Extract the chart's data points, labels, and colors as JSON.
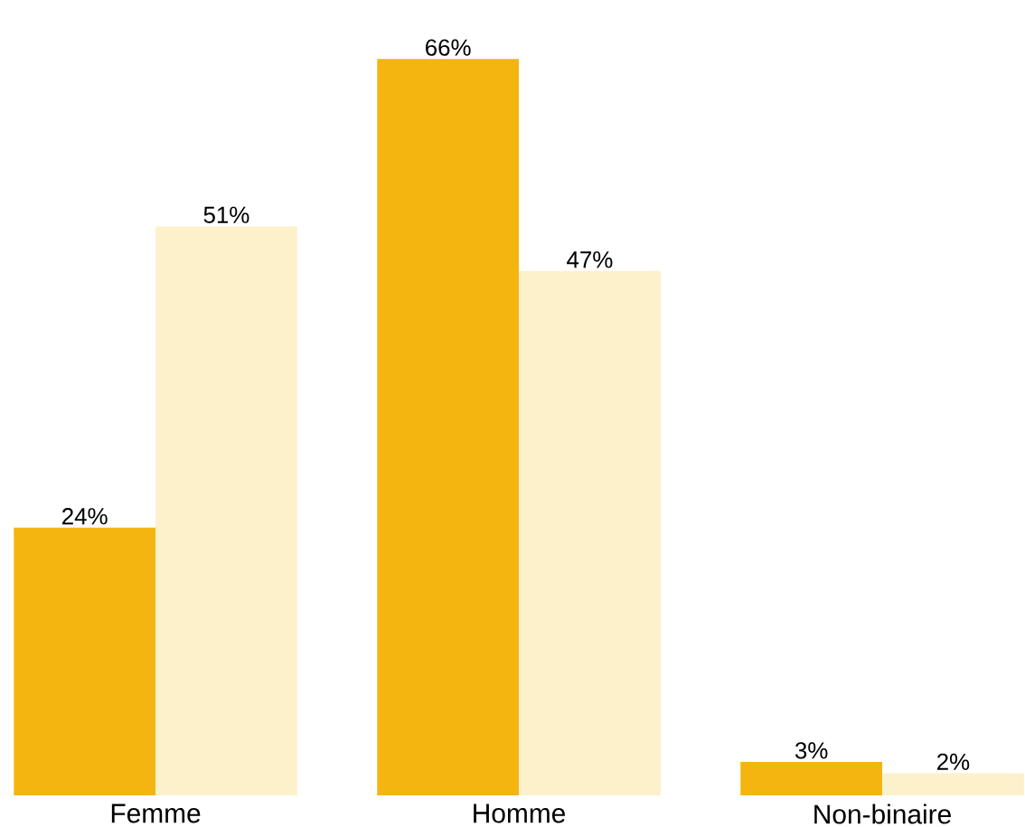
{
  "chart_data": {
    "type": "bar",
    "categories": [
      "Femme",
      "Homme",
      "Non-binaire"
    ],
    "series": [
      {
        "color": "#f5b510",
        "values": [
          24,
          66,
          3
        ],
        "value_labels": [
          "24%",
          "66%",
          "3%"
        ]
      },
      {
        "color": "#fdf1cc",
        "values": [
          51,
          47,
          2
        ],
        "value_labels": [
          "51%",
          "47%",
          "2%"
        ]
      }
    ],
    "data_labels": false
  }
}
